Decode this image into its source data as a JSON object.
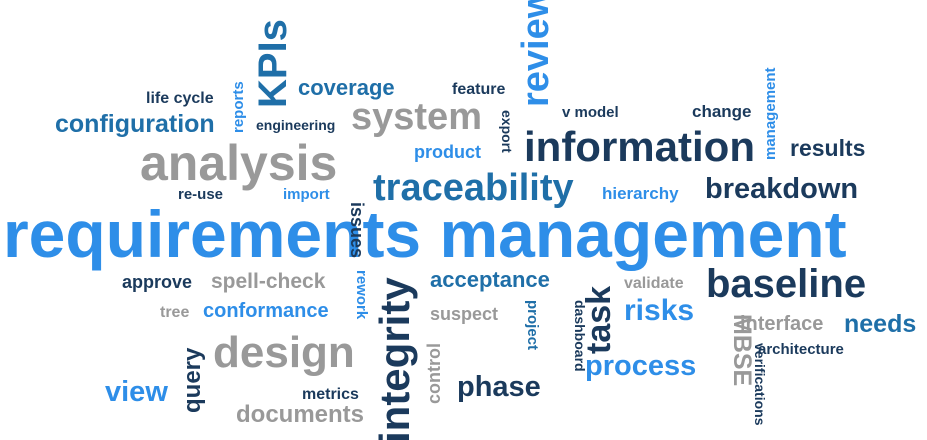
{
  "words": {
    "requirements_management": "requirements management",
    "information": "information",
    "analysis": "analysis",
    "baseline": "baseline",
    "design": "design",
    "traceability": "traceability",
    "system": "system",
    "breakdown": "breakdown",
    "review": "review",
    "kpis": "KPIs",
    "integrity": "integrity",
    "task": "task",
    "configuration": "configuration",
    "results": "results",
    "coverage": "coverage",
    "acceptance": "acceptance",
    "risks": "risks",
    "process": "process",
    "phase": "phase",
    "needs": "needs",
    "view": "view",
    "conformance": "conformance",
    "spell_check": "spell-check",
    "documents": "documents",
    "product": "product",
    "hierarchy": "hierarchy",
    "approve": "approve",
    "interface": "interface",
    "query": "query",
    "mbse": "MBSE",
    "change": "change",
    "feature": "feature",
    "management": "management",
    "life_cycle": "life cycle",
    "engineering": "engineering",
    "v_model": "v model",
    "re_use": "re-use",
    "import": "import",
    "issues": "issues",
    "export": "export",
    "reports": "reports",
    "suspect": "suspect",
    "tree": "tree",
    "rework": "rework",
    "validate": "validate",
    "architecture": "architecture",
    "metrics": "metrics",
    "project": "project",
    "dashboard": "dashboard",
    "control": "control",
    "verifications": "verifications"
  },
  "palette": {
    "dark_navy": "#1b3a5c",
    "medium_blue": "#1f6fa8",
    "light_blue": "#2e8ee8",
    "gray": "#999999"
  }
}
